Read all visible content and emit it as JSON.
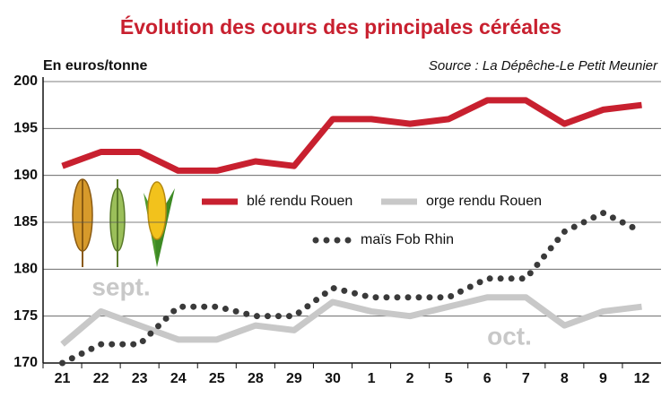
{
  "chart_data": {
    "type": "line",
    "title": "Évolution des cours des principales céréales",
    "y_label": "En euros/tonne",
    "source": "Source : La Dépêche-Le Petit Meunier",
    "categories": [
      "21",
      "22",
      "23",
      "24",
      "25",
      "28",
      "29",
      "30",
      "1",
      "2",
      "5",
      "6",
      "7",
      "8",
      "9",
      "12"
    ],
    "series": [
      {
        "name": "blé rendu Rouen",
        "color": "#c8202f",
        "style": "solid",
        "values": [
          191,
          192.5,
          192.5,
          190.5,
          190.5,
          191.5,
          191,
          196,
          196,
          195.5,
          196,
          198,
          198,
          195.5,
          197,
          197.5
        ]
      },
      {
        "name": "orge rendu Rouen",
        "color": "#c8c8c8",
        "style": "solid",
        "values": [
          172,
          175.5,
          174,
          172.5,
          172.5,
          174,
          173.5,
          176.5,
          175.5,
          175,
          176,
          177,
          177,
          174,
          175.5,
          176
        ]
      },
      {
        "name": "maïs Fob Rhin",
        "color": "#3a3a3a",
        "style": "dotted",
        "values": [
          170,
          172,
          172,
          176,
          176,
          175,
          175,
          178,
          177,
          177,
          177,
          179,
          179,
          184,
          186,
          184
        ]
      }
    ],
    "annotations": [
      "sept.",
      "oct."
    ],
    "ylim": [
      170,
      200
    ],
    "yticks": [
      170,
      175,
      180,
      185,
      190,
      195,
      200
    ],
    "grid": true
  }
}
